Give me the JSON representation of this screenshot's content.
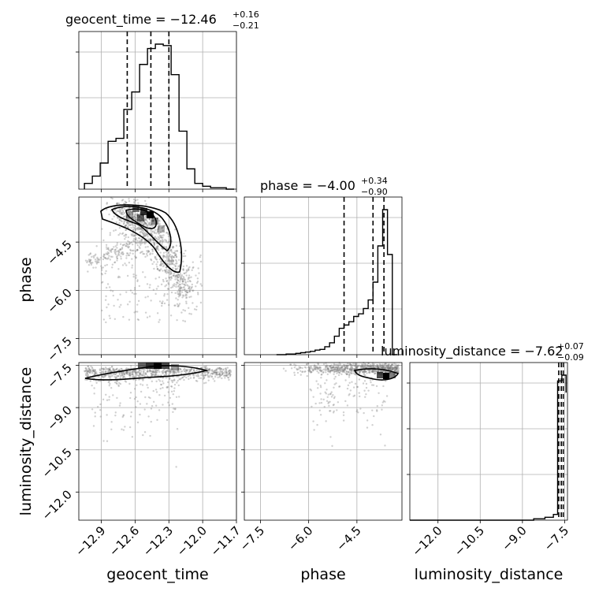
{
  "chart_data": {
    "type": "corner",
    "parameters": [
      "geocent_time",
      "phase",
      "luminosity_distance"
    ],
    "grid": true,
    "titles": [
      {
        "param": "geocent_time",
        "prefix": "geocent_time = ",
        "median": "−12.46",
        "plus": "+0.16",
        "minus": "−0.21"
      },
      {
        "param": "phase",
        "prefix": "phase = ",
        "median": "−4.00",
        "plus": "+0.34",
        "minus": "−0.90"
      },
      {
        "param": "luminosity_distance",
        "prefix": "luminosity_distance = ",
        "median": "−7.62",
        "plus": "+0.07",
        "minus": "−0.09"
      }
    ],
    "ranges": {
      "geocent_time": [
        -13.1,
        -11.7
      ],
      "phase": [
        -8.0,
        -3.1
      ],
      "luminosity_distance": [
        -13.0,
        -7.4
      ]
    },
    "ticks": {
      "geocent_time": [
        -12.9,
        -12.6,
        -12.3,
        -12.0,
        -11.7
      ],
      "phase": [
        -7.5,
        -6.0,
        -4.5
      ],
      "luminosity_distance": [
        -12.0,
        -10.5,
        -9.0,
        -7.5
      ]
    },
    "tick_labels": {
      "geocent_time": [
        "−12.9",
        "−12.6",
        "−12.3",
        "−12.0",
        "−11.7"
      ],
      "phase": [
        "−7.5",
        "−6.0",
        "−4.5"
      ],
      "luminosity_distance": [
        "−12.0",
        "−10.5",
        "−9.0",
        "−7.5"
      ]
    },
    "histograms": {
      "geocent_time": {
        "edges": [
          -13.05,
          -12.98,
          -12.91,
          -12.84,
          -12.77,
          -12.7,
          -12.63,
          -12.56,
          -12.49,
          -12.42,
          -12.35,
          -12.28,
          -12.21,
          -12.14,
          -12.07,
          -12.0,
          -11.93,
          -11.86,
          -11.79,
          -11.72
        ],
        "counts": [
          4,
          9,
          18,
          33,
          35,
          55,
          67,
          86,
          97,
          100,
          99,
          79,
          40,
          14,
          4,
          2,
          1,
          1,
          0
        ]
      },
      "phase": {
        "edges": [
          -7.0,
          -6.85,
          -6.7,
          -6.55,
          -6.4,
          -6.25,
          -6.1,
          -5.95,
          -5.8,
          -5.65,
          -5.5,
          -5.35,
          -5.2,
          -5.05,
          -4.9,
          -4.75,
          -4.6,
          -4.45,
          -4.3,
          -4.15,
          -4.0,
          -3.85,
          -3.7,
          -3.55,
          -3.4,
          -3.25
        ],
        "counts": [
          0,
          0,
          1,
          1,
          2,
          3,
          4,
          5,
          7,
          8,
          12,
          18,
          28,
          40,
          45,
          50,
          58,
          62,
          70,
          83,
          110,
          165,
          220,
          152,
          0
        ]
      },
      "luminosity_distance": {
        "edges": [
          -13.0,
          -12.6,
          -12.2,
          -11.8,
          -11.4,
          -11.0,
          -10.6,
          -10.2,
          -9.8,
          -9.4,
          -9.0,
          -8.6,
          -8.2,
          -7.9,
          -7.75,
          -7.6,
          -7.45
        ],
        "counts": [
          0,
          0,
          0,
          0,
          0,
          0,
          0,
          0,
          0,
          0,
          0,
          1,
          2,
          4,
          96,
          100,
          88
        ]
      }
    },
    "quantiles": {
      "geocent_time": [
        -12.67,
        -12.46,
        -12.3
      ],
      "phase": [
        -4.9,
        -4.0,
        -3.66
      ],
      "luminosity_distance": [
        -7.71,
        -7.62,
        -7.55
      ]
    }
  },
  "labels": {
    "geocent_time": "geocent_time",
    "phase": "phase",
    "luminosity_distance": "luminosity_distance"
  }
}
